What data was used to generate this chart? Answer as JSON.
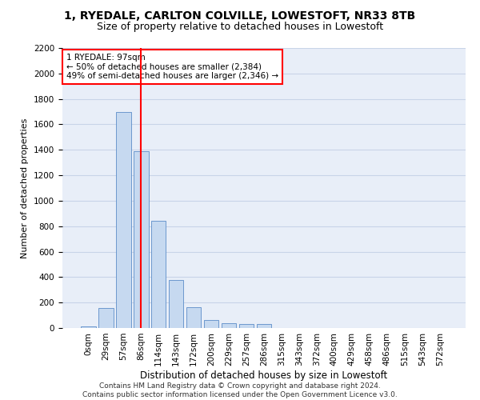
{
  "title_line1": "1, RYEDALE, CARLTON COLVILLE, LOWESTOFT, NR33 8TB",
  "title_line2": "Size of property relative to detached houses in Lowestoft",
  "xlabel": "Distribution of detached houses by size in Lowestoft",
  "ylabel": "Number of detached properties",
  "bar_labels": [
    "0sqm",
    "29sqm",
    "57sqm",
    "86sqm",
    "114sqm",
    "143sqm",
    "172sqm",
    "200sqm",
    "229sqm",
    "257sqm",
    "286sqm",
    "315sqm",
    "343sqm",
    "372sqm",
    "400sqm",
    "429sqm",
    "458sqm",
    "486sqm",
    "515sqm",
    "543sqm",
    "572sqm"
  ],
  "bar_values": [
    15,
    155,
    1700,
    1390,
    840,
    380,
    165,
    65,
    35,
    30,
    30,
    0,
    0,
    0,
    0,
    0,
    0,
    0,
    0,
    0,
    0
  ],
  "bar_color": "#c6d9f0",
  "bar_edge_color": "#5b8cc8",
  "vline_x": 3,
  "vline_color": "red",
  "annotation_text": "1 RYEDALE: 97sqm\n← 50% of detached houses are smaller (2,384)\n49% of semi-detached houses are larger (2,346) →",
  "annotation_box_color": "white",
  "annotation_box_edge_color": "red",
  "ylim": [
    0,
    2200
  ],
  "yticks": [
    0,
    200,
    400,
    600,
    800,
    1000,
    1200,
    1400,
    1600,
    1800,
    2000,
    2200
  ],
  "grid_color": "#c8d4e8",
  "background_color": "#e8eef8",
  "footer_line1": "Contains HM Land Registry data © Crown copyright and database right 2024.",
  "footer_line2": "Contains public sector information licensed under the Open Government Licence v3.0.",
  "title_fontsize": 10,
  "subtitle_fontsize": 9,
  "tick_fontsize": 7.5,
  "ylabel_fontsize": 8,
  "xlabel_fontsize": 8.5,
  "footer_fontsize": 6.5
}
